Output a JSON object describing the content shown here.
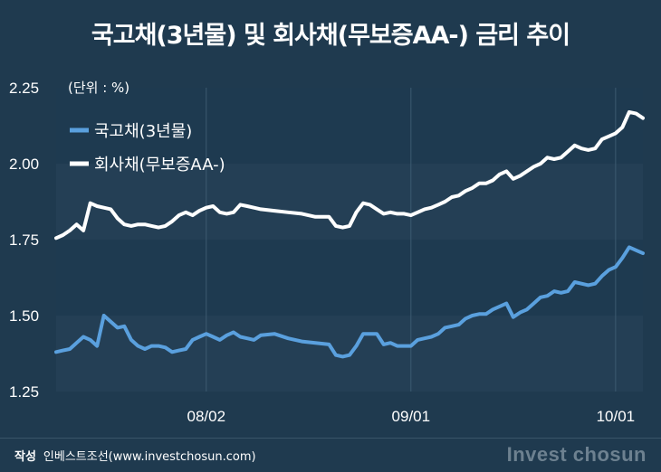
{
  "header": {
    "title": "국고채(3년물) 및 회사채(무보증AA-) 금리 추이"
  },
  "chart_data": {
    "type": "line",
    "unit_label": "(단위 : %)",
    "y_ticks": [
      "2.25",
      "2.00",
      "1.75",
      "1.50",
      "1.25"
    ],
    "ylim": [
      1.25,
      2.25
    ],
    "x_ticks": [
      {
        "label": "08/02",
        "x": 22
      },
      {
        "label": "09/01",
        "x": 52
      },
      {
        "label": "10/01",
        "x": 82
      }
    ],
    "xlim": [
      0,
      86
    ],
    "grid": "horizontal bands",
    "legend_placement": "top-left",
    "series": [
      {
        "name": "국고채(3년물)",
        "color": "#5aa0de",
        "x": [
          0,
          1,
          2,
          3,
          4,
          5,
          6,
          7,
          8,
          9,
          10,
          11,
          12,
          13,
          14,
          15,
          16,
          17,
          18,
          19,
          20,
          21,
          22,
          23,
          24,
          25,
          26,
          27,
          28,
          29,
          30,
          32,
          34,
          36,
          38,
          40,
          41,
          42,
          43,
          44,
          45,
          46,
          47,
          48,
          49,
          50,
          51,
          52,
          53,
          54,
          55,
          56,
          57,
          58,
          59,
          60,
          61,
          62,
          63,
          64,
          65,
          66,
          67,
          68,
          69,
          70,
          71,
          72,
          73,
          74,
          75,
          76,
          77,
          78,
          79,
          80,
          81,
          82,
          83,
          84,
          85,
          86
        ],
        "values": [
          1.38,
          1.385,
          1.39,
          1.41,
          1.43,
          1.42,
          1.4,
          1.5,
          1.48,
          1.46,
          1.465,
          1.42,
          1.4,
          1.39,
          1.4,
          1.4,
          1.395,
          1.38,
          1.385,
          1.39,
          1.42,
          1.43,
          1.44,
          1.43,
          1.42,
          1.435,
          1.445,
          1.43,
          1.425,
          1.42,
          1.435,
          1.44,
          1.425,
          1.415,
          1.41,
          1.405,
          1.37,
          1.365,
          1.37,
          1.4,
          1.44,
          1.44,
          1.44,
          1.405,
          1.41,
          1.4,
          1.4,
          1.4,
          1.42,
          1.425,
          1.43,
          1.44,
          1.46,
          1.465,
          1.47,
          1.49,
          1.5,
          1.505,
          1.505,
          1.52,
          1.53,
          1.54,
          1.495,
          1.51,
          1.52,
          1.54,
          1.56,
          1.565,
          1.58,
          1.575,
          1.58,
          1.61,
          1.605,
          1.6,
          1.605,
          1.63,
          1.65,
          1.66,
          1.69,
          1.725,
          1.715,
          1.705
        ]
      },
      {
        "name": "회사채(무보증AA-)",
        "color": "#ffffff",
        "x": [
          0,
          1,
          2,
          3,
          4,
          5,
          6,
          7,
          8,
          9,
          10,
          11,
          12,
          13,
          14,
          15,
          16,
          17,
          18,
          19,
          20,
          21,
          22,
          23,
          24,
          25,
          26,
          27,
          28,
          29,
          30,
          32,
          34,
          36,
          38,
          40,
          41,
          42,
          43,
          44,
          45,
          46,
          47,
          48,
          49,
          50,
          51,
          52,
          53,
          54,
          55,
          56,
          57,
          58,
          59,
          60,
          61,
          62,
          63,
          64,
          65,
          66,
          67,
          68,
          69,
          70,
          71,
          72,
          73,
          74,
          75,
          76,
          77,
          78,
          79,
          80,
          81,
          82,
          83,
          84,
          85,
          86
        ],
        "values": [
          1.755,
          1.765,
          1.78,
          1.8,
          1.78,
          1.87,
          1.86,
          1.855,
          1.85,
          1.82,
          1.8,
          1.795,
          1.8,
          1.8,
          1.795,
          1.79,
          1.795,
          1.81,
          1.83,
          1.84,
          1.83,
          1.845,
          1.855,
          1.86,
          1.84,
          1.835,
          1.84,
          1.865,
          1.86,
          1.855,
          1.85,
          1.845,
          1.84,
          1.835,
          1.825,
          1.825,
          1.795,
          1.79,
          1.795,
          1.84,
          1.87,
          1.865,
          1.85,
          1.835,
          1.84,
          1.835,
          1.835,
          1.83,
          1.84,
          1.85,
          1.855,
          1.865,
          1.875,
          1.89,
          1.895,
          1.91,
          1.92,
          1.935,
          1.935,
          1.945,
          1.965,
          1.975,
          1.95,
          1.96,
          1.975,
          1.99,
          2.0,
          2.02,
          2.015,
          2.02,
          2.04,
          2.06,
          2.05,
          2.045,
          2.05,
          2.08,
          2.09,
          2.1,
          2.12,
          2.17,
          2.165,
          2.15
        ]
      }
    ]
  },
  "footer": {
    "credit_key": "작성",
    "credit_value": "인베스트조선(www.investchosun.com)",
    "watermark": "Invest chosun"
  }
}
